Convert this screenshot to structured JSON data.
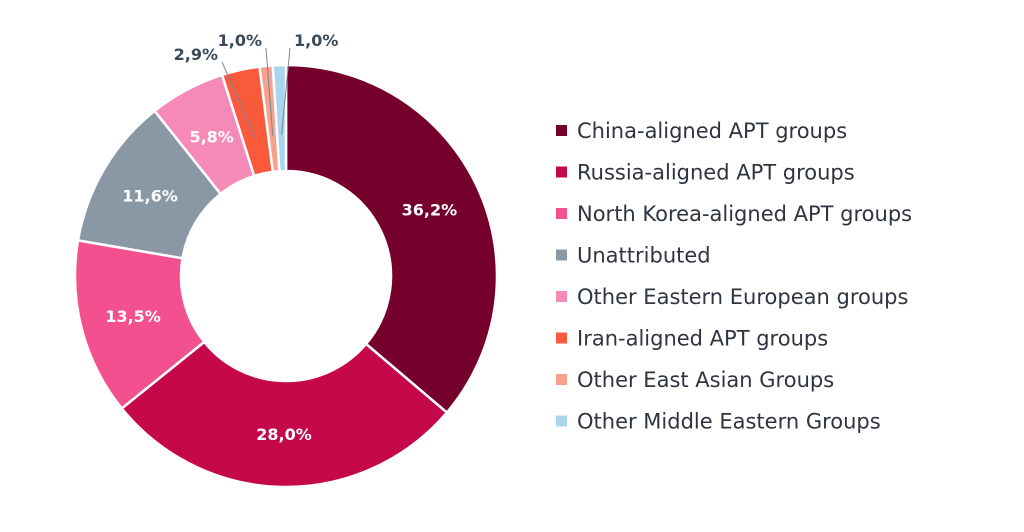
{
  "chart_data": {
    "type": "pie",
    "donut": true,
    "legend_position": "right",
    "title": "",
    "categories": [
      "China-aligned APT groups",
      "Russia-aligned APT groups",
      "North Korea-aligned APT groups",
      "Unattributed",
      "Other Eastern European groups",
      "Iran-aligned APT groups",
      "Other East Asian Groups",
      "Other Middle Eastern Groups"
    ],
    "values": [
      36.2,
      28.0,
      13.5,
      11.6,
      5.8,
      2.9,
      1.0,
      1.0
    ],
    "labels": [
      "36,2%",
      "28,0%",
      "13,5%",
      "11,6%",
      "5,8%",
      "2,9%",
      "1,0%",
      "1,0%"
    ],
    "colors": [
      "#76002c",
      "#c4084a",
      "#f2508e",
      "#8a98a6",
      "#f58ab8",
      "#fa5a3c",
      "#f7a08c",
      "#a9d6ee"
    ]
  }
}
